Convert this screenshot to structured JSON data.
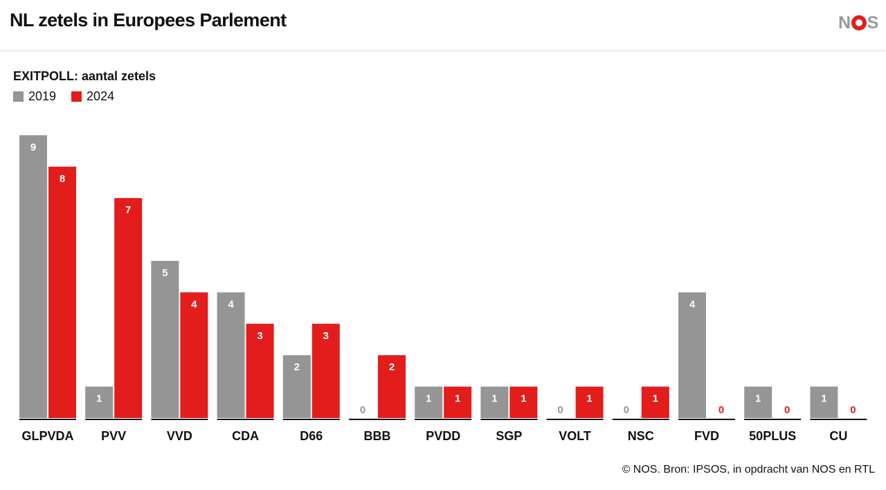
{
  "header": {
    "title": "NL zetels in Europees Parlement",
    "logo": {
      "parts": [
        "N",
        "S"
      ],
      "text": "NOS"
    }
  },
  "colors": {
    "series_2019": "#959595",
    "series_2024": "#e31c1c",
    "axis": "#111111"
  },
  "source": "© NOS. Bron: IPSOS, in opdracht van NOS en RTL",
  "chart_data": {
    "type": "bar",
    "title": "EXITPOLL: aantal zetels",
    "xlabel": "",
    "ylabel": "",
    "ylim": [
      0,
      9
    ],
    "grid": false,
    "legend_position": "top-left",
    "categories": [
      "GLPVDA",
      "PVV",
      "VVD",
      "CDA",
      "D66",
      "BBB",
      "PVDD",
      "SGP",
      "VOLT",
      "NSC",
      "FVD",
      "50PLUS",
      "CU"
    ],
    "series": [
      {
        "name": "2019",
        "values": [
          9,
          1,
          5,
          4,
          2,
          0,
          1,
          1,
          0,
          0,
          4,
          1,
          1
        ]
      },
      {
        "name": "2024",
        "values": [
          8,
          7,
          4,
          3,
          3,
          2,
          1,
          1,
          1,
          1,
          0,
          0,
          0
        ]
      }
    ]
  }
}
